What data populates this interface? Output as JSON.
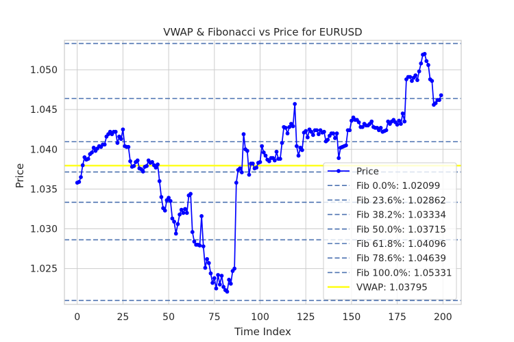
{
  "chart_data": {
    "type": "line",
    "title": "VWAP & Fibonacci vs Price for EURUSD",
    "xlabel": "Time Index",
    "ylabel": "Price",
    "xlim": [
      -7,
      210
    ],
    "ylim": [
      1.0205,
      1.0537
    ],
    "xticks": [
      0,
      25,
      50,
      75,
      100,
      125,
      150,
      175,
      200
    ],
    "yticks": [
      1.025,
      1.03,
      1.035,
      1.04,
      1.045,
      1.05
    ],
    "ytick_labels": [
      "1.025",
      "1.030",
      "1.035",
      "1.040",
      "1.045",
      "1.050"
    ],
    "grid": true,
    "legend_position": "lower-right",
    "series": [
      {
        "name": "Price",
        "color": "#0000ff",
        "marker": "circle",
        "values": [
          1.0358,
          1.0359,
          1.0365,
          1.038,
          1.039,
          1.0387,
          1.0388,
          1.0394,
          1.0396,
          1.0402,
          1.0398,
          1.0401,
          1.0404,
          1.0403,
          1.0406,
          1.0406,
          1.0416,
          1.0419,
          1.0422,
          1.0419,
          1.0422,
          1.0422,
          1.0408,
          1.0416,
          1.0413,
          1.0425,
          1.0404,
          1.0403,
          1.0403,
          1.0385,
          1.0378,
          1.0379,
          1.0384,
          1.0386,
          1.0376,
          1.0375,
          1.0372,
          1.0378,
          1.0379,
          1.0386,
          1.0383,
          1.0384,
          1.038,
          1.0377,
          1.0381,
          1.036,
          1.034,
          1.0326,
          1.0323,
          1.0336,
          1.0339,
          1.0335,
          1.0313,
          1.0309,
          1.0294,
          1.0306,
          1.0318,
          1.0324,
          1.032,
          1.0325,
          1.032,
          1.0342,
          1.0344,
          1.0296,
          1.0284,
          1.028,
          1.028,
          1.0279,
          1.0316,
          1.0278,
          1.0251,
          1.0262,
          1.0257,
          1.0244,
          1.0232,
          1.0238,
          1.0225,
          1.0242,
          1.023,
          1.0241,
          1.0227,
          1.0223,
          1.0221,
          1.0236,
          1.0231,
          1.0247,
          1.025,
          1.0358,
          1.0374,
          1.0376,
          1.0371,
          1.0419,
          1.04,
          1.0398,
          1.0368,
          1.0382,
          1.0382,
          1.0376,
          1.0377,
          1.0383,
          1.0384,
          1.0404,
          1.0396,
          1.0392,
          1.0387,
          1.0385,
          1.0389,
          1.0389,
          1.0386,
          1.0397,
          1.0388,
          1.0388,
          1.0408,
          1.0428,
          1.0427,
          1.042,
          1.0428,
          1.0432,
          1.0429,
          1.0457,
          1.0404,
          1.0392,
          1.0402,
          1.0399,
          1.0421,
          1.0423,
          1.0415,
          1.0425,
          1.0422,
          1.0418,
          1.0424,
          1.0424,
          1.0419,
          1.0424,
          1.0421,
          1.0422,
          1.041,
          1.0412,
          1.0417,
          1.042,
          1.042,
          1.0414,
          1.042,
          1.0389,
          1.0402,
          1.0403,
          1.0404,
          1.0405,
          1.0424,
          1.0424,
          1.0436,
          1.044,
          1.0437,
          1.0437,
          1.0434,
          1.0428,
          1.0428,
          1.0432,
          1.043,
          1.043,
          1.0432,
          1.0435,
          1.0428,
          1.0427,
          1.0427,
          1.0424,
          1.0427,
          1.0422,
          1.0423,
          1.0424,
          1.0435,
          1.0432,
          1.0435,
          1.0437,
          1.0434,
          1.0431,
          1.0436,
          1.0432,
          1.0445,
          1.0435,
          1.0488,
          1.0491,
          1.0491,
          1.0486,
          1.049,
          1.0493,
          1.0487,
          1.0498,
          1.0508,
          1.0519,
          1.052,
          1.0511,
          1.0506,
          1.0488,
          1.0486,
          1.0456,
          1.0458,
          1.0462,
          1.0462,
          1.0468
        ]
      }
    ],
    "reference_lines": [
      {
        "name": "Fib 0.0%: 1.02099",
        "value": 1.02099,
        "color": "#4c72b0",
        "style": "dashed"
      },
      {
        "name": "Fib 23.6%: 1.02862",
        "value": 1.02862,
        "color": "#4c72b0",
        "style": "dashed"
      },
      {
        "name": "Fib 38.2%: 1.03334",
        "value": 1.03334,
        "color": "#4c72b0",
        "style": "dashed"
      },
      {
        "name": "Fib 50.0%: 1.03715",
        "value": 1.03715,
        "color": "#4c72b0",
        "style": "dashed"
      },
      {
        "name": "Fib 61.8%: 1.04096",
        "value": 1.04096,
        "color": "#4c72b0",
        "style": "dashed"
      },
      {
        "name": "Fib 78.6%: 1.04639",
        "value": 1.04639,
        "color": "#4c72b0",
        "style": "dashed"
      },
      {
        "name": "Fib 100.0%: 1.05331",
        "value": 1.05331,
        "color": "#4c72b0",
        "style": "dashed"
      },
      {
        "name": "VWAP: 1.03795",
        "value": 1.03795,
        "color": "#ffff1f",
        "style": "solid"
      }
    ]
  }
}
